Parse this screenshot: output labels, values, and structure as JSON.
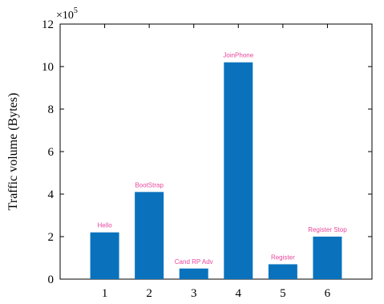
{
  "chart_data": {
    "type": "bar",
    "categories": [
      "1",
      "2",
      "3",
      "4",
      "5",
      "6"
    ],
    "bar_labels": [
      "Hello",
      "BootStrap",
      "Cand RP Adv",
      "JoinPhone",
      "Register",
      "Register Stop"
    ],
    "values": [
      220000,
      410000,
      50000,
      1020000,
      70000,
      200000
    ],
    "title": "",
    "xlabel": "",
    "ylabel": "Traffic volume (Bytes)",
    "ylim": [
      0,
      1200000
    ],
    "y_ticks": [
      "0",
      "2",
      "4",
      "6",
      "8",
      "10",
      "12"
    ],
    "y_tick_values": [
      0,
      200000,
      400000,
      600000,
      800000,
      1000000,
      1200000
    ],
    "y_multiplier_base": "×10",
    "y_multiplier_exp": "5",
    "bar_color": "#0a72bd",
    "label_color": "#e8469c",
    "grid": false,
    "legend": "none"
  }
}
